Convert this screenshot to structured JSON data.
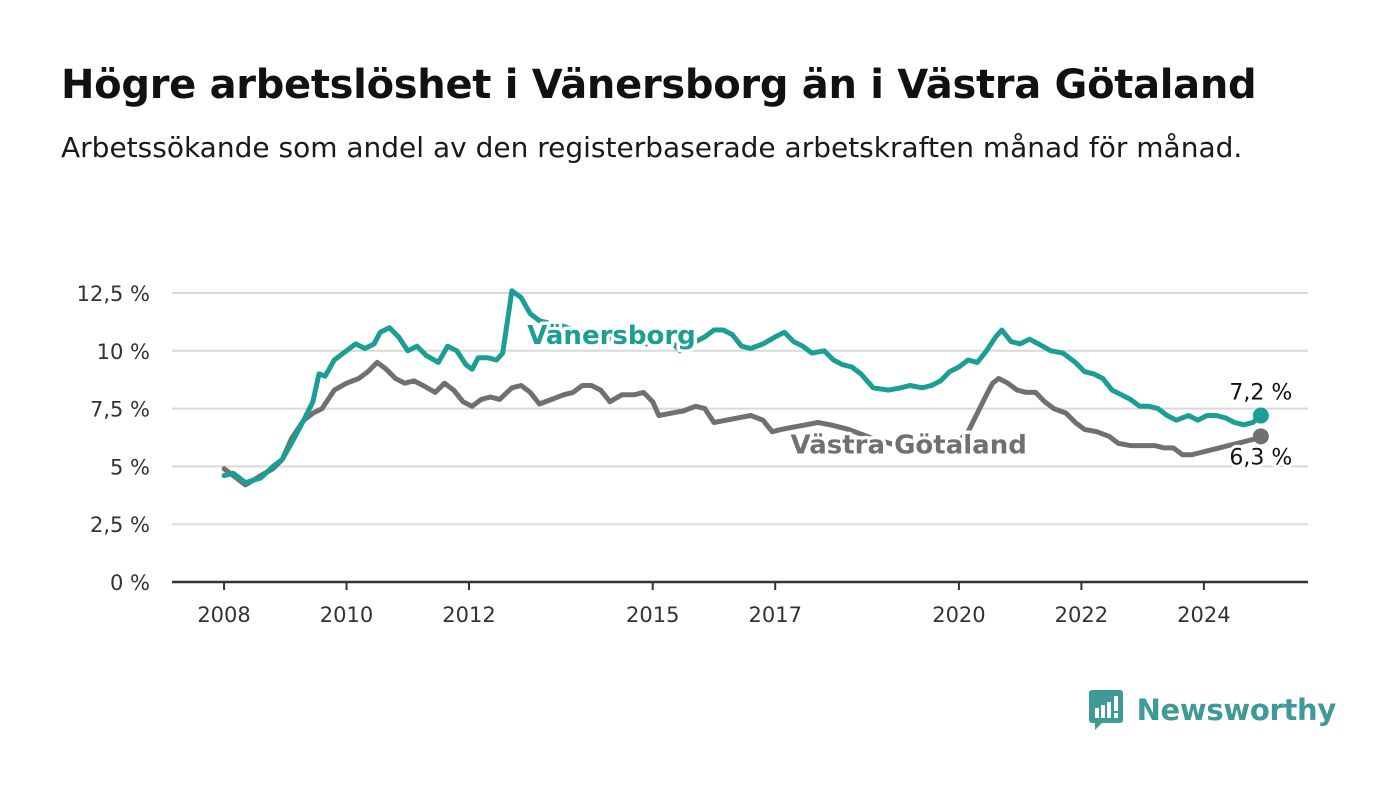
{
  "header": {
    "title": "Högre arbetslöshet i Vänersborg än i Västra Götaland",
    "subtitle": "Arbetssökande som andel av den registerbaserade arbetskraften månad för månad."
  },
  "brand": {
    "name": "Newsworthy",
    "icon": "newsworthy-logo-icon",
    "color": "#3f9a97"
  },
  "chart_data": {
    "type": "line",
    "title": "Högre arbetslöshet i Vänersborg än i Västra Götaland",
    "subtitle": "Arbetssökande som andel av den registerbaserade arbetskraften månad för månad.",
    "x_ticks": [
      "2008",
      "2010",
      "2012",
      "2015",
      "2017",
      "2020",
      "2022",
      "2024"
    ],
    "x_tick_values": [
      2008,
      2010,
      2012,
      2015,
      2017,
      2020,
      2022,
      2024
    ],
    "y_ticks": [
      "0 %",
      "2,5 %",
      "5 %",
      "7,5 %",
      "10 %",
      "12,5 %"
    ],
    "y_tick_values": [
      0,
      2.5,
      5,
      7.5,
      10,
      12.5
    ],
    "xlim": [
      2007.15,
      2025.7
    ],
    "ylim": [
      0,
      12.5
    ],
    "grid": "horizontal",
    "series": [
      {
        "name": "Vänersborg",
        "color": "#1b9e94",
        "end_label": "7,2 %",
        "points": [
          [
            2008.0,
            4.6
          ],
          [
            2008.15,
            4.7
          ],
          [
            2008.35,
            4.3
          ],
          [
            2008.6,
            4.5
          ],
          [
            2008.8,
            5.0
          ],
          [
            2008.95,
            5.3
          ],
          [
            2009.1,
            6.0
          ],
          [
            2009.3,
            7.0
          ],
          [
            2009.45,
            7.8
          ],
          [
            2009.55,
            9.0
          ],
          [
            2009.65,
            8.9
          ],
          [
            2009.8,
            9.6
          ],
          [
            2010.0,
            10.0
          ],
          [
            2010.15,
            10.3
          ],
          [
            2010.3,
            10.1
          ],
          [
            2010.45,
            10.3
          ],
          [
            2010.55,
            10.8
          ],
          [
            2010.7,
            11.0
          ],
          [
            2010.85,
            10.6
          ],
          [
            2011.0,
            10.0
          ],
          [
            2011.15,
            10.2
          ],
          [
            2011.3,
            9.8
          ],
          [
            2011.5,
            9.5
          ],
          [
            2011.65,
            10.2
          ],
          [
            2011.8,
            10.0
          ],
          [
            2011.95,
            9.4
          ],
          [
            2012.05,
            9.2
          ],
          [
            2012.15,
            9.7
          ],
          [
            2012.3,
            9.7
          ],
          [
            2012.45,
            9.6
          ],
          [
            2012.55,
            9.9
          ],
          [
            2012.7,
            12.6
          ],
          [
            2012.85,
            12.3
          ],
          [
            2013.0,
            11.6
          ],
          [
            2013.15,
            11.3
          ],
          [
            2013.3,
            11.2
          ],
          [
            2013.5,
            11.1
          ],
          [
            2013.7,
            10.9
          ],
          [
            2013.9,
            10.8
          ],
          [
            2014.1,
            10.7
          ],
          [
            2014.3,
            10.5
          ],
          [
            2014.6,
            10.4
          ],
          [
            2014.9,
            10.3
          ],
          [
            2015.1,
            10.5
          ],
          [
            2015.3,
            10.4
          ],
          [
            2015.45,
            10.0
          ],
          [
            2015.55,
            10.1
          ],
          [
            2015.7,
            10.4
          ],
          [
            2015.85,
            10.6
          ],
          [
            2016.0,
            10.9
          ],
          [
            2016.15,
            10.9
          ],
          [
            2016.3,
            10.7
          ],
          [
            2016.45,
            10.2
          ],
          [
            2016.6,
            10.1
          ],
          [
            2016.8,
            10.3
          ],
          [
            2017.0,
            10.6
          ],
          [
            2017.15,
            10.8
          ],
          [
            2017.3,
            10.4
          ],
          [
            2017.45,
            10.2
          ],
          [
            2017.6,
            9.9
          ],
          [
            2017.8,
            10.0
          ],
          [
            2017.95,
            9.6
          ],
          [
            2018.1,
            9.4
          ],
          [
            2018.25,
            9.3
          ],
          [
            2018.4,
            9.0
          ],
          [
            2018.6,
            8.4
          ],
          [
            2018.85,
            8.3
          ],
          [
            2019.05,
            8.4
          ],
          [
            2019.2,
            8.5
          ],
          [
            2019.4,
            8.4
          ],
          [
            2019.55,
            8.5
          ],
          [
            2019.7,
            8.7
          ],
          [
            2019.85,
            9.1
          ],
          [
            2020.0,
            9.3
          ],
          [
            2020.15,
            9.6
          ],
          [
            2020.3,
            9.5
          ],
          [
            2020.45,
            10.0
          ],
          [
            2020.6,
            10.6
          ],
          [
            2020.7,
            10.9
          ],
          [
            2020.85,
            10.4
          ],
          [
            2021.0,
            10.3
          ],
          [
            2021.15,
            10.5
          ],
          [
            2021.3,
            10.3
          ],
          [
            2021.5,
            10.0
          ],
          [
            2021.7,
            9.9
          ],
          [
            2021.9,
            9.5
          ],
          [
            2022.05,
            9.1
          ],
          [
            2022.2,
            9.0
          ],
          [
            2022.35,
            8.8
          ],
          [
            2022.5,
            8.3
          ],
          [
            2022.65,
            8.1
          ],
          [
            2022.8,
            7.9
          ],
          [
            2022.95,
            7.6
          ],
          [
            2023.1,
            7.6
          ],
          [
            2023.25,
            7.5
          ],
          [
            2023.4,
            7.2
          ],
          [
            2023.55,
            7.0
          ],
          [
            2023.75,
            7.2
          ],
          [
            2023.9,
            7.0
          ],
          [
            2024.05,
            7.2
          ],
          [
            2024.2,
            7.2
          ],
          [
            2024.35,
            7.1
          ],
          [
            2024.5,
            6.9
          ],
          [
            2024.65,
            6.8
          ],
          [
            2024.8,
            6.9
          ],
          [
            2024.93,
            7.2
          ]
        ]
      },
      {
        "name": "Västra Götaland",
        "color": "#707070",
        "end_label": "6,3 %",
        "points": [
          [
            2008.0,
            4.9
          ],
          [
            2008.15,
            4.6
          ],
          [
            2008.35,
            4.2
          ],
          [
            2008.6,
            4.6
          ],
          [
            2008.8,
            4.9
          ],
          [
            2008.95,
            5.3
          ],
          [
            2009.1,
            6.2
          ],
          [
            2009.3,
            7.0
          ],
          [
            2009.45,
            7.3
          ],
          [
            2009.6,
            7.5
          ],
          [
            2009.8,
            8.3
          ],
          [
            2010.0,
            8.6
          ],
          [
            2010.2,
            8.8
          ],
          [
            2010.35,
            9.1
          ],
          [
            2010.5,
            9.5
          ],
          [
            2010.65,
            9.2
          ],
          [
            2010.8,
            8.8
          ],
          [
            2010.95,
            8.6
          ],
          [
            2011.1,
            8.7
          ],
          [
            2011.25,
            8.5
          ],
          [
            2011.45,
            8.2
          ],
          [
            2011.6,
            8.6
          ],
          [
            2011.75,
            8.3
          ],
          [
            2011.9,
            7.8
          ],
          [
            2012.05,
            7.6
          ],
          [
            2012.2,
            7.9
          ],
          [
            2012.35,
            8.0
          ],
          [
            2012.5,
            7.9
          ],
          [
            2012.7,
            8.4
          ],
          [
            2012.85,
            8.5
          ],
          [
            2013.0,
            8.2
          ],
          [
            2013.15,
            7.7
          ],
          [
            2013.35,
            7.9
          ],
          [
            2013.55,
            8.1
          ],
          [
            2013.7,
            8.2
          ],
          [
            2013.85,
            8.5
          ],
          [
            2014.0,
            8.5
          ],
          [
            2014.15,
            8.3
          ],
          [
            2014.3,
            7.8
          ],
          [
            2014.5,
            8.1
          ],
          [
            2014.7,
            8.1
          ],
          [
            2014.85,
            8.2
          ],
          [
            2015.0,
            7.8
          ],
          [
            2015.1,
            7.2
          ],
          [
            2015.3,
            7.3
          ],
          [
            2015.5,
            7.4
          ],
          [
            2015.7,
            7.6
          ],
          [
            2015.85,
            7.5
          ],
          [
            2016.0,
            6.9
          ],
          [
            2016.2,
            7.0
          ],
          [
            2016.4,
            7.1
          ],
          [
            2016.6,
            7.2
          ],
          [
            2016.8,
            7.0
          ],
          [
            2016.95,
            6.5
          ],
          [
            2017.1,
            6.6
          ],
          [
            2017.3,
            6.7
          ],
          [
            2017.5,
            6.8
          ],
          [
            2017.7,
            6.9
          ],
          [
            2017.9,
            6.8
          ],
          [
            2018.2,
            6.6
          ],
          [
            2018.6,
            6.2
          ],
          [
            2019.0,
            5.9
          ],
          [
            2019.4,
            5.8
          ],
          [
            2019.8,
            5.9
          ],
          [
            2020.0,
            6.1
          ],
          [
            2020.15,
            6.5
          ],
          [
            2020.3,
            7.3
          ],
          [
            2020.45,
            8.1
          ],
          [
            2020.55,
            8.6
          ],
          [
            2020.65,
            8.8
          ],
          [
            2020.8,
            8.6
          ],
          [
            2020.95,
            8.3
          ],
          [
            2021.1,
            8.2
          ],
          [
            2021.25,
            8.2
          ],
          [
            2021.4,
            7.8
          ],
          [
            2021.55,
            7.5
          ],
          [
            2021.75,
            7.3
          ],
          [
            2021.9,
            6.9
          ],
          [
            2022.05,
            6.6
          ],
          [
            2022.25,
            6.5
          ],
          [
            2022.45,
            6.3
          ],
          [
            2022.6,
            6.0
          ],
          [
            2022.8,
            5.9
          ],
          [
            2023.0,
            5.9
          ],
          [
            2023.2,
            5.9
          ],
          [
            2023.35,
            5.8
          ],
          [
            2023.5,
            5.8
          ],
          [
            2023.65,
            5.5
          ],
          [
            2023.8,
            5.5
          ],
          [
            2023.95,
            5.6
          ],
          [
            2024.1,
            5.7
          ],
          [
            2024.25,
            5.8
          ],
          [
            2024.4,
            5.9
          ],
          [
            2024.55,
            6.0
          ],
          [
            2024.7,
            6.1
          ],
          [
            2024.85,
            6.2
          ],
          [
            2024.93,
            6.3
          ]
        ]
      }
    ]
  }
}
